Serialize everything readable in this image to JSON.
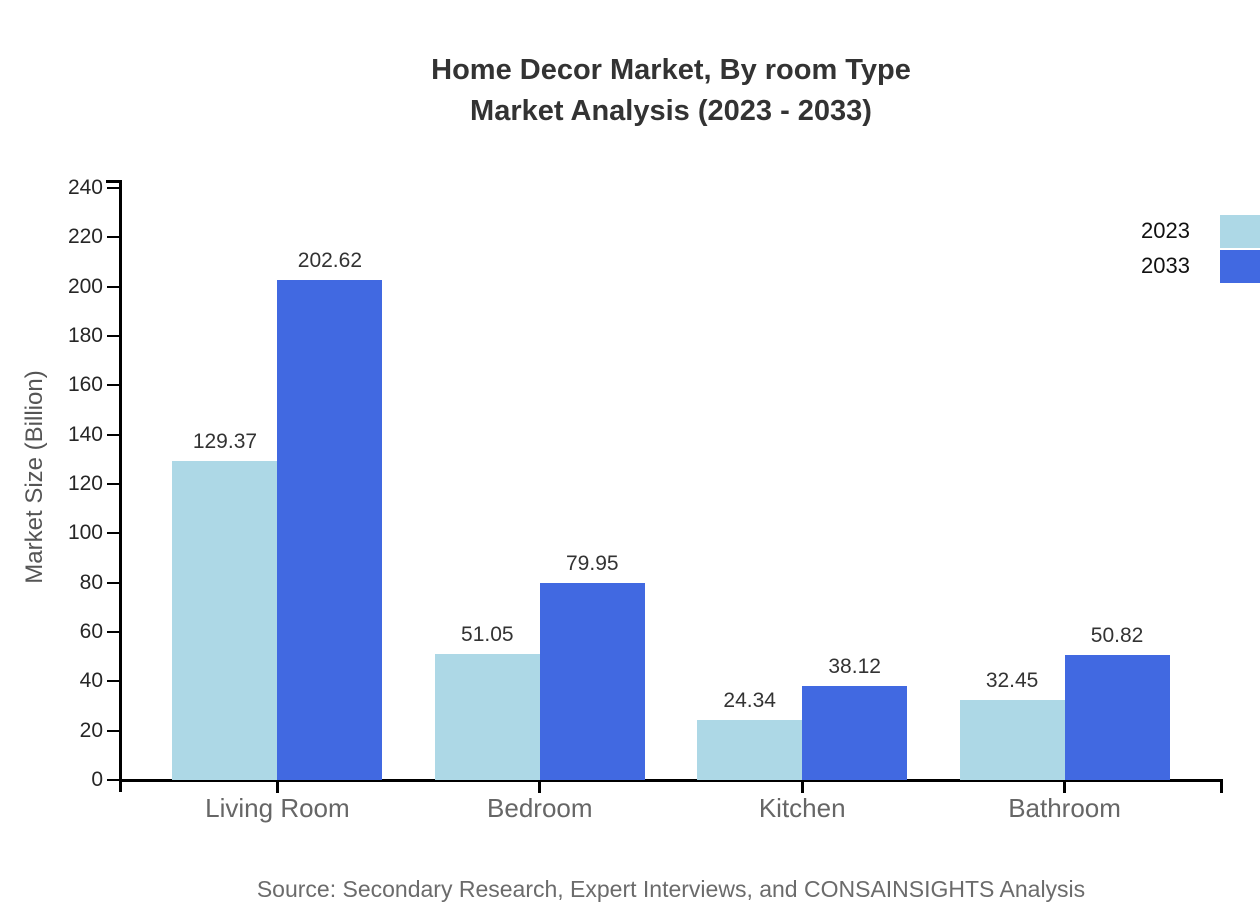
{
  "title": {
    "line1": "Home Decor Market, By room Type",
    "line2": "Market Analysis (2023 - 2033)"
  },
  "source": "Source: Secondary Research, Expert Interviews, and CONSAINSIGHTS Analysis",
  "colors": {
    "series_2023": "#ADD8E6",
    "series_2033": "#4169E1",
    "axis": "#000000",
    "title_text": "#333333",
    "category_text": "#666666",
    "source_text": "#6b6b6b"
  },
  "chart_data": {
    "type": "bar",
    "categories": [
      "Living Room",
      "Bedroom",
      "Kitchen",
      "Bathroom"
    ],
    "series": [
      {
        "name": "2023",
        "color": "#ADD8E6",
        "values": [
          129.37,
          51.05,
          24.34,
          32.45
        ]
      },
      {
        "name": "2033",
        "color": "#4169E1",
        "values": [
          202.62,
          79.95,
          38.12,
          50.82
        ]
      }
    ],
    "title": "Home Decor Market, By room Type Market Analysis (2023 - 2033)",
    "xlabel": "",
    "ylabel": "Market Size (Billion)",
    "ylim": [
      0,
      240
    ],
    "ytick_step": 20,
    "grid": false,
    "legend_position": "top-right",
    "value_labels_decimals": 2
  }
}
